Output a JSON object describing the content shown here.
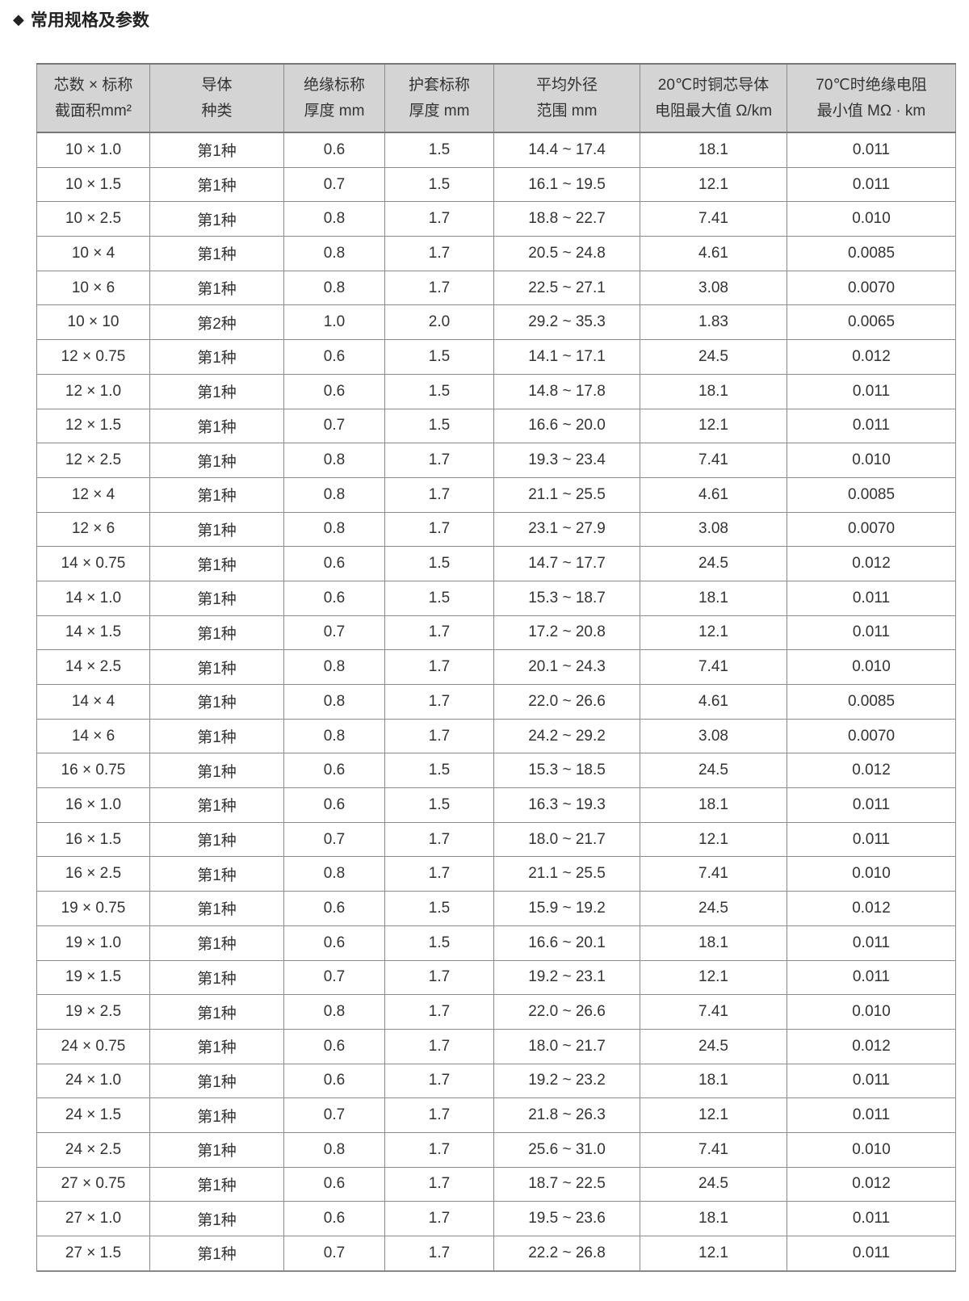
{
  "title": "常用规格及参数",
  "title_icon": "diamond-icon",
  "colors": {
    "header_bg": "#d4d4d4",
    "border": "#8a8a8a"
  },
  "table": {
    "headers": [
      [
        "芯数 × 标称",
        "截面积mm²"
      ],
      [
        "导体",
        "种类"
      ],
      [
        "绝缘标称",
        "厚度 mm"
      ],
      [
        "护套标称",
        "厚度 mm"
      ],
      [
        "平均外径",
        "范围 mm"
      ],
      [
        "20℃时铜芯导体",
        "电阻最大值 Ω/km"
      ],
      [
        "70℃时绝缘电阻",
        "最小值 MΩ · km"
      ]
    ],
    "rows": [
      [
        "10 × 1.0",
        "第1种",
        "0.6",
        "1.5",
        "14.4 ~ 17.4",
        "18.1",
        "0.011"
      ],
      [
        "10 × 1.5",
        "第1种",
        "0.7",
        "1.5",
        "16.1 ~ 19.5",
        "12.1",
        "0.011"
      ],
      [
        "10 × 2.5",
        "第1种",
        "0.8",
        "1.7",
        "18.8 ~ 22.7",
        "7.41",
        "0.010"
      ],
      [
        "10 × 4",
        "第1种",
        "0.8",
        "1.7",
        "20.5 ~ 24.8",
        "4.61",
        "0.0085"
      ],
      [
        "10 × 6",
        "第1种",
        "0.8",
        "1.7",
        "22.5 ~ 27.1",
        "3.08",
        "0.0070"
      ],
      [
        "10 × 10",
        "第2种",
        "1.0",
        "2.0",
        "29.2 ~ 35.3",
        "1.83",
        "0.0065"
      ],
      [
        "12 × 0.75",
        "第1种",
        "0.6",
        "1.5",
        "14.1 ~ 17.1",
        "24.5",
        "0.012"
      ],
      [
        "12 × 1.0",
        "第1种",
        "0.6",
        "1.5",
        "14.8 ~ 17.8",
        "18.1",
        "0.011"
      ],
      [
        "12 × 1.5",
        "第1种",
        "0.7",
        "1.5",
        "16.6 ~ 20.0",
        "12.1",
        "0.011"
      ],
      [
        "12 × 2.5",
        "第1种",
        "0.8",
        "1.7",
        "19.3 ~ 23.4",
        "7.41",
        "0.010"
      ],
      [
        "12 × 4",
        "第1种",
        "0.8",
        "1.7",
        "21.1 ~ 25.5",
        "4.61",
        "0.0085"
      ],
      [
        "12 × 6",
        "第1种",
        "0.8",
        "1.7",
        "23.1 ~ 27.9",
        "3.08",
        "0.0070"
      ],
      [
        "14 × 0.75",
        "第1种",
        "0.6",
        "1.5",
        "14.7 ~ 17.7",
        "24.5",
        "0.012"
      ],
      [
        "14 × 1.0",
        "第1种",
        "0.6",
        "1.5",
        "15.3 ~ 18.7",
        "18.1",
        "0.011"
      ],
      [
        "14 × 1.5",
        "第1种",
        "0.7",
        "1.7",
        "17.2 ~ 20.8",
        "12.1",
        "0.011"
      ],
      [
        "14 × 2.5",
        "第1种",
        "0.8",
        "1.7",
        "20.1 ~ 24.3",
        "7.41",
        "0.010"
      ],
      [
        "14 × 4",
        "第1种",
        "0.8",
        "1.7",
        "22.0 ~ 26.6",
        "4.61",
        "0.0085"
      ],
      [
        "14 × 6",
        "第1种",
        "0.8",
        "1.7",
        "24.2 ~ 29.2",
        "3.08",
        "0.0070"
      ],
      [
        "16 × 0.75",
        "第1种",
        "0.6",
        "1.5",
        "15.3 ~ 18.5",
        "24.5",
        "0.012"
      ],
      [
        "16 × 1.0",
        "第1种",
        "0.6",
        "1.5",
        "16.3 ~ 19.3",
        "18.1",
        "0.011"
      ],
      [
        "16 × 1.5",
        "第1种",
        "0.7",
        "1.7",
        "18.0 ~ 21.7",
        "12.1",
        "0.011"
      ],
      [
        "16 × 2.5",
        "第1种",
        "0.8",
        "1.7",
        "21.1 ~ 25.5",
        "7.41",
        "0.010"
      ],
      [
        "19 × 0.75",
        "第1种",
        "0.6",
        "1.5",
        "15.9 ~ 19.2",
        "24.5",
        "0.012"
      ],
      [
        "19 × 1.0",
        "第1种",
        "0.6",
        "1.5",
        "16.6 ~ 20.1",
        "18.1",
        "0.011"
      ],
      [
        "19 × 1.5",
        "第1种",
        "0.7",
        "1.7",
        "19.2 ~ 23.1",
        "12.1",
        "0.011"
      ],
      [
        "19 × 2.5",
        "第1种",
        "0.8",
        "1.7",
        "22.0 ~ 26.6",
        "7.41",
        "0.010"
      ],
      [
        "24 × 0.75",
        "第1种",
        "0.6",
        "1.7",
        "18.0 ~ 21.7",
        "24.5",
        "0.012"
      ],
      [
        "24 × 1.0",
        "第1种",
        "0.6",
        "1.7",
        "19.2 ~ 23.2",
        "18.1",
        "0.011"
      ],
      [
        "24 × 1.5",
        "第1种",
        "0.7",
        "1.7",
        "21.8 ~ 26.3",
        "12.1",
        "0.011"
      ],
      [
        "24 × 2.5",
        "第1种",
        "0.8",
        "1.7",
        "25.6 ~ 31.0",
        "7.41",
        "0.010"
      ],
      [
        "27 × 0.75",
        "第1种",
        "0.6",
        "1.7",
        "18.7 ~ 22.5",
        "24.5",
        "0.012"
      ],
      [
        "27 × 1.0",
        "第1种",
        "0.6",
        "1.7",
        "19.5 ~ 23.6",
        "18.1",
        "0.011"
      ],
      [
        "27 × 1.5",
        "第1种",
        "0.7",
        "1.7",
        "22.2 ~ 26.8",
        "12.1",
        "0.011"
      ]
    ]
  }
}
